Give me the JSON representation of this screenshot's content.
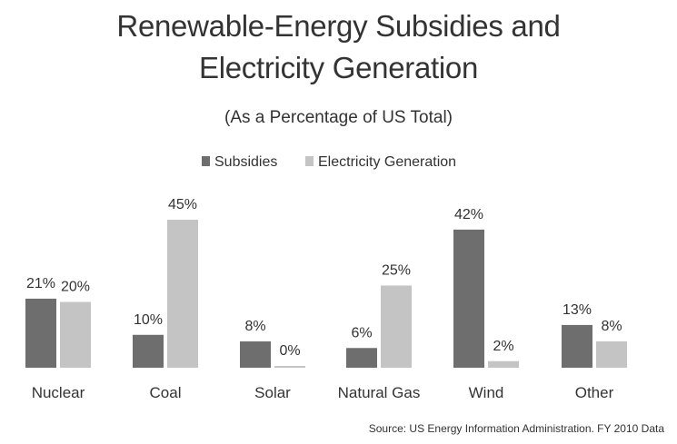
{
  "chart_data": {
    "type": "bar",
    "title": "Renewable-Energy Subsidies and Electricity Generation",
    "title_lines": [
      "Renewable-Energy Subsidies and",
      "Electricity Generation"
    ],
    "subtitle": "(As a Percentage of US Total)",
    "categories": [
      "Nuclear",
      "Coal",
      "Solar",
      "Natural Gas",
      "Wind",
      "Other"
    ],
    "series": [
      {
        "name": "Subsidies",
        "color": "#6e6e6e",
        "values": [
          21,
          10,
          8,
          6,
          42,
          13
        ],
        "labels": [
          "21%",
          "10%",
          "8%",
          "6%",
          "42%",
          "13%"
        ]
      },
      {
        "name": "Electricity Generation",
        "color": "#c4c4c4",
        "values": [
          20,
          45,
          0,
          25,
          2,
          8
        ],
        "labels": [
          "20%",
          "45%",
          "0%",
          "25%",
          "2%",
          "8%"
        ]
      }
    ],
    "xlabel": "",
    "ylabel": "",
    "ylim": [
      0,
      45
    ],
    "grid": false,
    "legend_position": "top-center",
    "source": "Source: US Energy Information Administration. FY 2010 Data"
  }
}
